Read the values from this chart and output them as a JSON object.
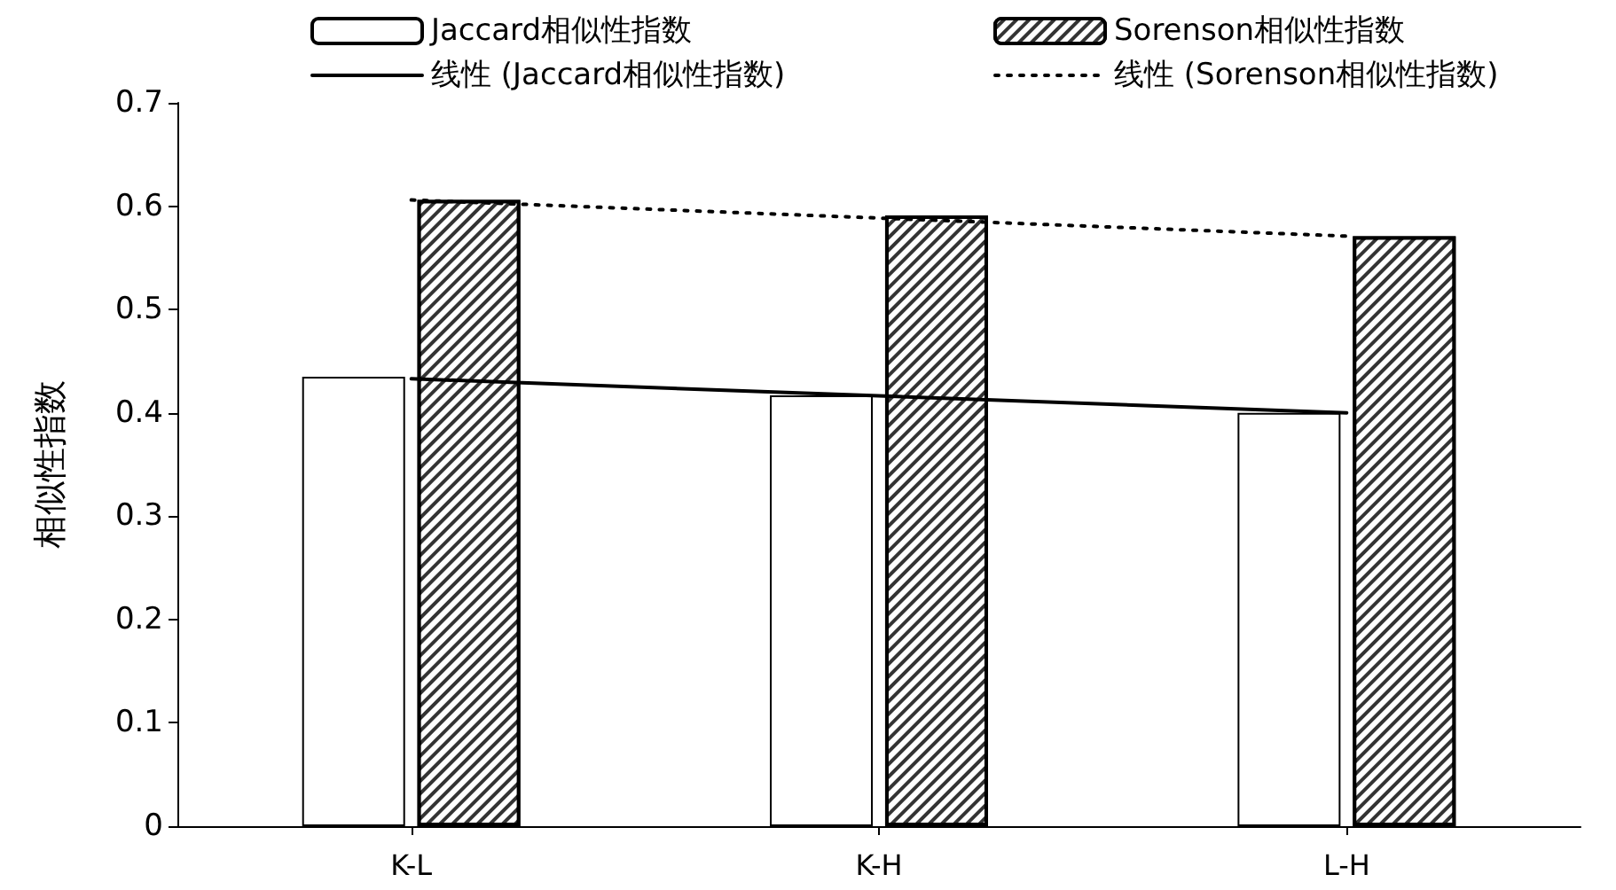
{
  "chart_data": {
    "type": "bar",
    "ylabel": "相似性指数",
    "categories": [
      "K-L",
      "K-H",
      "L-H"
    ],
    "series": [
      {
        "name": "Jaccard相似性指数",
        "color": "#ffffff",
        "values": [
          0.435,
          0.417,
          0.4
        ]
      },
      {
        "name": "Sorenson相似性指数",
        "color": "#333333",
        "values": [
          0.606,
          0.591,
          0.571
        ]
      },
      {
        "name": "线性 (Jaccard相似性指数)",
        "type": "line",
        "color": "#000000",
        "line_style": "solid",
        "x": [
          "K-L",
          "L-H"
        ],
        "values": [
          0.433,
          0.4
        ]
      },
      {
        "name": "线性 (Sorenson相似性指数)",
        "type": "line",
        "color": "#000000",
        "line_style": "dotted",
        "x": [
          "K-L",
          "L-H"
        ],
        "values": [
          0.606,
          0.571
        ]
      }
    ],
    "ylim": [
      0,
      0.7
    ],
    "yticks": [
      0,
      0.1,
      0.2,
      0.3,
      0.4,
      0.5,
      0.6,
      0.7
    ],
    "grid": false,
    "legend": "top",
    "marker": "none"
  }
}
